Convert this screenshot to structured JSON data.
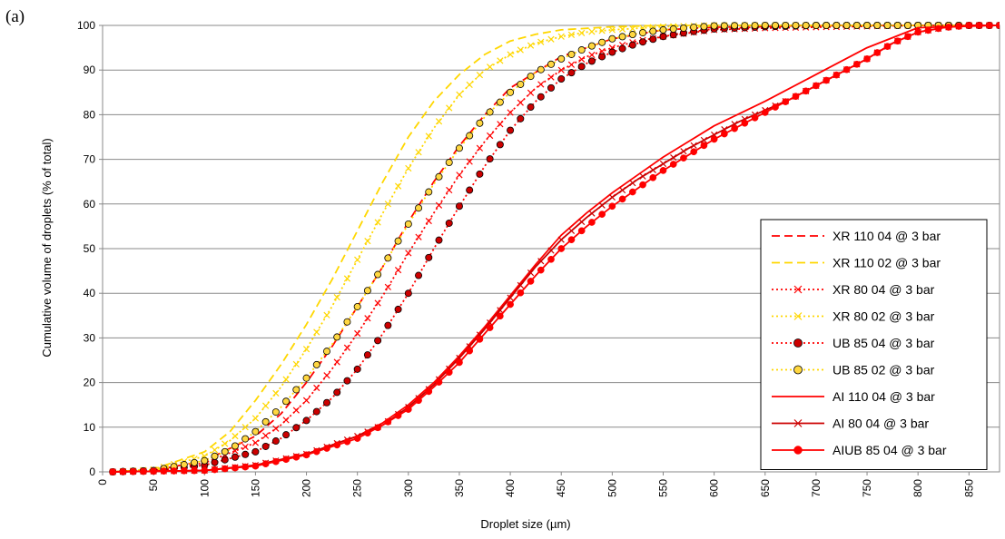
{
  "panel_label": "(a)",
  "chart_data": {
    "type": "line",
    "xlabel": "Droplet size (µm)",
    "ylabel": "Cumulative volume of droplets (% of total)",
    "xlim": [
      0,
      880
    ],
    "ylim": [
      0,
      100
    ],
    "x_ticks": [
      0,
      50,
      100,
      150,
      200,
      250,
      300,
      350,
      400,
      450,
      500,
      550,
      600,
      650,
      700,
      750,
      800,
      850
    ],
    "y_ticks": [
      0,
      10,
      20,
      30,
      40,
      50,
      60,
      70,
      80,
      90,
      100
    ],
    "grid": "horizontal",
    "legend_position": "bottom-right",
    "series": [
      {
        "name": "XR 110 04 @ 3 bar",
        "color": "#ff0000",
        "style": "dashed",
        "marker": "none",
        "x": [
          10,
          50,
          100,
          150,
          175,
          200,
          225,
          250,
          275,
          300,
          325,
          350,
          375,
          400,
          450,
          500,
          550,
          600,
          700,
          800,
          880
        ],
        "y": [
          0,
          0.3,
          2.5,
          8,
          13,
          20,
          28,
          37,
          46,
          56,
          65,
          73,
          80,
          86,
          93,
          97,
          99,
          99.6,
          99.9,
          100,
          100
        ]
      },
      {
        "name": "XR 110 02 @ 3 bar",
        "color": "#ffd700",
        "style": "dashed",
        "marker": "none",
        "x": [
          10,
          50,
          100,
          125,
          150,
          175,
          200,
          225,
          250,
          275,
          300,
          325,
          350,
          375,
          400,
          425,
          450,
          500,
          550,
          600,
          880
        ],
        "y": [
          0,
          0.6,
          4.5,
          9,
          16,
          24,
          33,
          43,
          54,
          65,
          75,
          83,
          89,
          93.5,
          96.5,
          98,
          99,
          99.7,
          100,
          100,
          100
        ]
      },
      {
        "name": "XR 80 04 @ 3 bar",
        "color": "#ff0000",
        "style": "dotted",
        "marker": "x",
        "x": [
          10,
          50,
          100,
          150,
          175,
          200,
          225,
          250,
          275,
          300,
          325,
          350,
          375,
          400,
          425,
          450,
          475,
          500,
          525,
          550,
          575,
          600,
          650,
          700,
          750,
          800,
          880
        ],
        "y": [
          0,
          0.3,
          2,
          6.5,
          10.5,
          16,
          23,
          31,
          39.5,
          49,
          58,
          66.5,
          74,
          80.5,
          86,
          90,
          93,
          95,
          96.5,
          97.5,
          98.3,
          99,
          99.4,
          99.6,
          99.8,
          100,
          100
        ]
      },
      {
        "name": "XR 80 02 @ 3 bar",
        "color": "#ffd700",
        "style": "dotted",
        "marker": "x",
        "x": [
          10,
          50,
          100,
          125,
          150,
          175,
          200,
          225,
          250,
          275,
          300,
          325,
          350,
          375,
          400,
          425,
          450,
          475,
          500,
          550,
          600,
          880
        ],
        "y": [
          0,
          0.5,
          3.5,
          7,
          12,
          19,
          27.5,
          37,
          47.5,
          58,
          68,
          77,
          84.5,
          90,
          93.5,
          96,
          97.5,
          98.5,
          99,
          99.7,
          100,
          100
        ]
      },
      {
        "name": "UB 85 04 @ 3 bar",
        "color": "#ff0000",
        "style": "dotted",
        "marker": "circle-dark",
        "x": [
          10,
          50,
          100,
          150,
          175,
          200,
          225,
          250,
          275,
          300,
          325,
          350,
          375,
          400,
          425,
          450,
          475,
          500,
          525,
          550,
          575,
          600,
          650,
          700,
          880
        ],
        "y": [
          0,
          0.2,
          1.5,
          4.5,
          7.5,
          11.5,
          16.5,
          23,
          31,
          40,
          50,
          59.5,
          68.5,
          76.5,
          83,
          88,
          91.5,
          94,
          96,
          97.5,
          98.5,
          99.2,
          99.7,
          100,
          100
        ]
      },
      {
        "name": "UB 85 02 @ 3 bar",
        "color": "#ffd700",
        "style": "dotted",
        "marker": "circle-gold",
        "x": [
          10,
          50,
          100,
          125,
          150,
          175,
          200,
          225,
          250,
          275,
          300,
          325,
          350,
          375,
          400,
          425,
          450,
          475,
          500,
          525,
          550,
          575,
          600,
          650,
          880
        ],
        "y": [
          0,
          0.3,
          2.5,
          5,
          9,
          14.5,
          21,
          28.5,
          37,
          46,
          55.5,
          64.5,
          72.5,
          79.5,
          85,
          89.5,
          92.5,
          95,
          97,
          98.2,
          99,
          99.5,
          99.9,
          100,
          100
        ]
      },
      {
        "name": "AI 110 04 @ 3 bar",
        "color": "#ff0000",
        "style": "solid",
        "marker": "none",
        "x": [
          10,
          100,
          150,
          200,
          250,
          275,
          300,
          325,
          350,
          375,
          400,
          425,
          450,
          475,
          500,
          525,
          550,
          575,
          600,
          650,
          700,
          750,
          800,
          880
        ],
        "y": [
          0,
          0.3,
          1.5,
          4,
          8,
          11,
          15,
          20,
          26,
          32.5,
          39.5,
          46.5,
          53,
          58,
          62.5,
          66.5,
          70.5,
          74,
          77.5,
          83,
          89,
          95,
          99.5,
          100
        ]
      },
      {
        "name": "AI 80 04 @ 3 bar",
        "color": "#cc0000",
        "style": "solid",
        "marker": "x",
        "x": [
          10,
          100,
          150,
          200,
          250,
          275,
          300,
          325,
          350,
          375,
          400,
          425,
          450,
          475,
          500,
          525,
          550,
          575,
          600,
          625,
          650,
          675,
          700,
          725,
          750,
          775,
          800,
          825,
          850,
          880
        ],
        "y": [
          0,
          0.3,
          1.5,
          4,
          8,
          10.5,
          14.5,
          19.5,
          25.5,
          32,
          39,
          46,
          52,
          57,
          61.5,
          65.5,
          69,
          72.5,
          75.5,
          78.5,
          81,
          83.5,
          86.5,
          89.5,
          92.5,
          96,
          98.5,
          99.5,
          100,
          100
        ]
      },
      {
        "name": "AIUB 85 04 @ 3 bar",
        "color": "#ff0000",
        "style": "solid",
        "marker": "circle-red",
        "x": [
          10,
          100,
          150,
          200,
          250,
          275,
          300,
          325,
          350,
          375,
          400,
          425,
          450,
          475,
          500,
          525,
          550,
          575,
          600,
          625,
          650,
          675,
          700,
          725,
          750,
          775,
          800,
          825,
          850,
          880
        ],
        "y": [
          0,
          0.3,
          1.3,
          3.8,
          7.5,
          10.5,
          14,
          19,
          24.5,
          31,
          37.5,
          44,
          50,
          55,
          59.5,
          63.5,
          67.5,
          71,
          74.5,
          77.5,
          80.5,
          83.5,
          86.5,
          89.5,
          92.5,
          96,
          98.5,
          99.5,
          100,
          100
        ]
      }
    ]
  }
}
